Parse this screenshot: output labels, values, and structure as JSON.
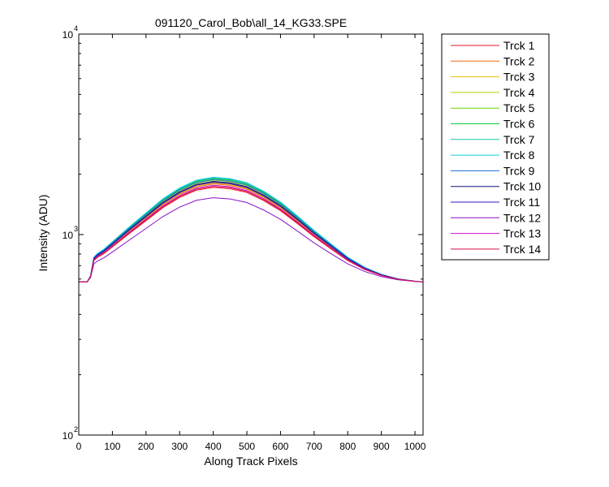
{
  "chart_data": {
    "type": "line",
    "title": "091120_Carol_Bob\\all_14_KG33.SPE",
    "xlabel": "Along Track Pixels",
    "ylabel": "Intensity (ADU)",
    "xlim": [
      0,
      1024
    ],
    "ylim": [
      100,
      10000
    ],
    "yscale": "log",
    "xticks": [
      0,
      100,
      200,
      300,
      400,
      500,
      600,
      700,
      800,
      900,
      1000
    ],
    "yticks": [
      {
        "base": "10",
        "exp": "2",
        "value": 100
      },
      {
        "base": "10",
        "exp": "3",
        "value": 1000
      },
      {
        "base": "10",
        "exp": "4",
        "value": 10000
      }
    ],
    "grid": false,
    "legend_position": "outside-top-right",
    "x": [
      0,
      25,
      35,
      45,
      55,
      75,
      100,
      150,
      200,
      250,
      300,
      350,
      400,
      450,
      500,
      550,
      600,
      650,
      700,
      750,
      800,
      850,
      900,
      950,
      1000,
      1024
    ],
    "series": [
      {
        "name": "Trck 1",
        "color": "#e8142c",
        "peak": 1660
      },
      {
        "name": "Trck 2",
        "color": "#f06a10",
        "peak": 1760
      },
      {
        "name": "Trck 3",
        "color": "#e8c000",
        "peak": 1790
      },
      {
        "name": "Trck 4",
        "color": "#b8d400",
        "peak": 1820
      },
      {
        "name": "Trck 5",
        "color": "#66d400",
        "peak": 1880
      },
      {
        "name": "Trck 6",
        "color": "#10d040",
        "peak": 1930
      },
      {
        "name": "Trck 7",
        "color": "#10c8a0",
        "peak": 1950
      },
      {
        "name": "Trck 8",
        "color": "#10d0d8",
        "peak": 1970
      },
      {
        "name": "Trck 9",
        "color": "#1070d8",
        "peak": 1900
      },
      {
        "name": "Trck 10",
        "color": "#10147a",
        "peak": 1840
      },
      {
        "name": "Trck 11",
        "color": "#3a10c8",
        "peak": 1810
      },
      {
        "name": "Trck 12",
        "color": "#8a10c8",
        "peak": 1380
      },
      {
        "name": "Trck 13",
        "color": "#d010c8",
        "peak": 1720
      },
      {
        "name": "Trck 14",
        "color": "#d8104a",
        "peak": 1690
      }
    ]
  }
}
